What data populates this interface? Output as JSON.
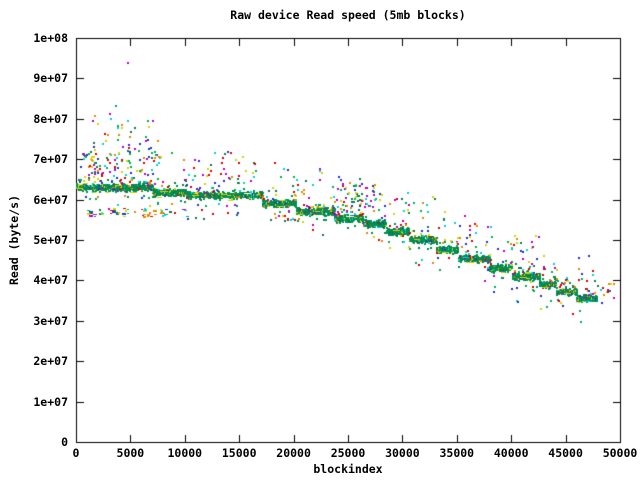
{
  "chart_data": {
    "type": "scatter",
    "title": "Raw device Read speed (5mb blocks)",
    "xlabel": "blockindex",
    "ylabel": "Read (byte/s)",
    "xlim": [
      0,
      50000
    ],
    "ylim": [
      0,
      100000000
    ],
    "grid": false,
    "legend": "none",
    "x_ticks": [
      {
        "value": 0,
        "label": "0"
      },
      {
        "value": 5000,
        "label": "5000"
      },
      {
        "value": 10000,
        "label": "10000"
      },
      {
        "value": 15000,
        "label": "15000"
      },
      {
        "value": 20000,
        "label": "20000"
      },
      {
        "value": 25000,
        "label": "25000"
      },
      {
        "value": 30000,
        "label": "30000"
      },
      {
        "value": 35000,
        "label": "35000"
      },
      {
        "value": 40000,
        "label": "40000"
      },
      {
        "value": 45000,
        "label": "45000"
      },
      {
        "value": 50000,
        "label": "50000"
      }
    ],
    "y_ticks": [
      {
        "value": 0,
        "label": "0"
      },
      {
        "value": 10000000,
        "label": "1e+07"
      },
      {
        "value": 20000000,
        "label": "2e+07"
      },
      {
        "value": 30000000,
        "label": "3e+07"
      },
      {
        "value": 40000000,
        "label": "4e+07"
      },
      {
        "value": 50000000,
        "label": "5e+07"
      },
      {
        "value": 60000000,
        "label": "6e+07"
      },
      {
        "value": 70000000,
        "label": "7e+07"
      },
      {
        "value": 80000000,
        "label": "8e+07"
      },
      {
        "value": 90000000,
        "label": "9e+07"
      },
      {
        "value": 100000000,
        "label": "1e+08"
      }
    ],
    "band_steps": [
      {
        "x0": 0,
        "x1": 7000,
        "value": 63000000
      },
      {
        "x0": 7000,
        "x1": 10100,
        "value": 61700000
      },
      {
        "x0": 10100,
        "x1": 17100,
        "value": 61000000
      },
      {
        "x0": 17100,
        "x1": 20200,
        "value": 59000000
      },
      {
        "x0": 20200,
        "x1": 23700,
        "value": 57000000
      },
      {
        "x0": 23700,
        "x1": 26300,
        "value": 55300000
      },
      {
        "x0": 26300,
        "x1": 28500,
        "value": 54000000
      },
      {
        "x0": 28500,
        "x1": 30600,
        "value": 52000000
      },
      {
        "x0": 30600,
        "x1": 33100,
        "value": 50000000
      },
      {
        "x0": 33100,
        "x1": 35100,
        "value": 47600000
      },
      {
        "x0": 35100,
        "x1": 38000,
        "value": 45300000
      },
      {
        "x0": 38000,
        "x1": 40100,
        "value": 43000000
      },
      {
        "x0": 40100,
        "x1": 42600,
        "value": 40800000
      },
      {
        "x0": 42600,
        "x1": 44100,
        "value": 39000000
      },
      {
        "x0": 44100,
        "x1": 46000,
        "value": 37200000
      },
      {
        "x0": 46000,
        "x1": 47900,
        "value": 35500000
      }
    ],
    "band_value_spread": 2700000,
    "noise_clusters": [
      {
        "name": "early-above-cloud-low",
        "x": [
          300,
          7700
        ],
        "y": [
          64500000,
          72500000
        ],
        "count": 78,
        "style": "dot"
      },
      {
        "name": "early-above-cloud-high",
        "x": [
          900,
          7600
        ],
        "y": [
          72500000,
          81500000
        ],
        "count": 24,
        "style": "dot"
      },
      {
        "name": "early-below-band",
        "x": [
          900,
          7400
        ],
        "y": [
          55800000,
          58000000
        ],
        "count": 40,
        "style": "dash"
      },
      {
        "name": "below-band-2",
        "x": [
          7400,
          10300
        ],
        "y": [
          56000000,
          57800000
        ],
        "count": 10,
        "style": "dash"
      },
      {
        "name": "mid-above-cluster",
        "x": [
          24200,
          27600
        ],
        "y": [
          57200000,
          64200000
        ],
        "count": 55,
        "style": "dot"
      },
      {
        "name": "below-band-3",
        "x": [
          17000,
          20600
        ],
        "y": [
          55000000,
          57600000
        ],
        "count": 12,
        "style": "dot"
      },
      {
        "name": "tail-scatter",
        "x": [
          47900,
          49600
        ],
        "y": [
          34500000,
          39500000
        ],
        "count": 12,
        "style": "dot"
      }
    ],
    "outlier_points": [
      {
        "x": 4650,
        "y": 94000000,
        "color": "#bb00cc"
      },
      {
        "x": 3600,
        "y": 83500000,
        "color": "#00b050"
      },
      {
        "x": 4700,
        "y": 79700000,
        "color": "#00d4d4"
      },
      {
        "x": 5350,
        "y": 78000000,
        "color": "#0e7a4a"
      },
      {
        "x": 1900,
        "y": 79000000,
        "color": "#d4d400"
      },
      {
        "x": 2600,
        "y": 76500000,
        "color": "#dd0000"
      },
      {
        "x": 6500,
        "y": 75000000,
        "color": "#2233cc"
      }
    ],
    "halo_noise": {
      "count": 430,
      "x": [
        100,
        47900
      ]
    },
    "point_size": 2,
    "colors": {
      "band_green": "#009152",
      "band_green_dark": "#0b7a47",
      "dash_yellow": "#d4d400",
      "noise_palette": [
        "#dd0000",
        "#00b050",
        "#2233cc",
        "#bb00cc",
        "#00d4d4",
        "#d4d400",
        "#e08a00",
        "#0e7a4a"
      ],
      "frame": "#000000",
      "background": "#ffffff"
    }
  }
}
